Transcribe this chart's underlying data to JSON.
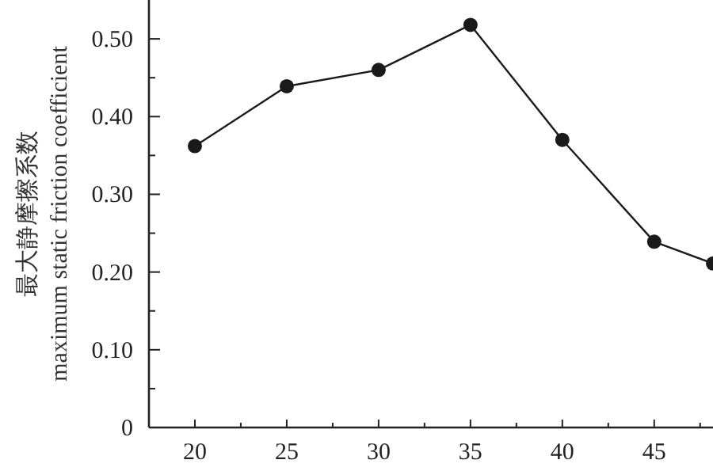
{
  "chart_data": {
    "type": "line",
    "ylabel": "最大静摩擦系数\nmaximum static friction coefficient",
    "x": [
      20,
      25,
      30,
      35,
      40,
      45,
      48.2
    ],
    "series": [
      {
        "color": "#1a1a1a",
        "values": [
          0.362,
          0.439,
          0.46,
          0.518,
          0.37,
          0.239,
          0.211
        ]
      }
    ],
    "xlim": [
      17.5,
      48.2
    ],
    "ylim": [
      0,
      0.55
    ],
    "xticks": [
      20,
      {
        "value": 22.5,
        "label": null
      },
      25,
      {
        "value": 27.5,
        "label": null
      },
      30,
      {
        "value": 32.5,
        "label": null
      },
      35,
      {
        "value": 37.5,
        "label": null
      },
      40,
      {
        "value": 42.5,
        "label": null
      },
      45,
      {
        "value": 47.5,
        "label": null
      }
    ],
    "yticks": [
      0,
      {
        "value": 0.05,
        "label": null
      },
      {
        "value": 0.1,
        "label": "0.10"
      },
      {
        "value": 0.15,
        "label": null
      },
      {
        "value": 0.2,
        "label": "0.20"
      },
      {
        "value": 0.25,
        "label": null
      },
      {
        "value": 0.3,
        "label": "0.30"
      },
      {
        "value": 0.35,
        "label": null
      },
      {
        "value": 0.4,
        "label": "0.40"
      },
      {
        "value": 0.45,
        "label": null
      },
      {
        "value": 0.5,
        "label": "0.50"
      }
    ],
    "marker": "circle",
    "line_style": "solid",
    "grid": false
  }
}
